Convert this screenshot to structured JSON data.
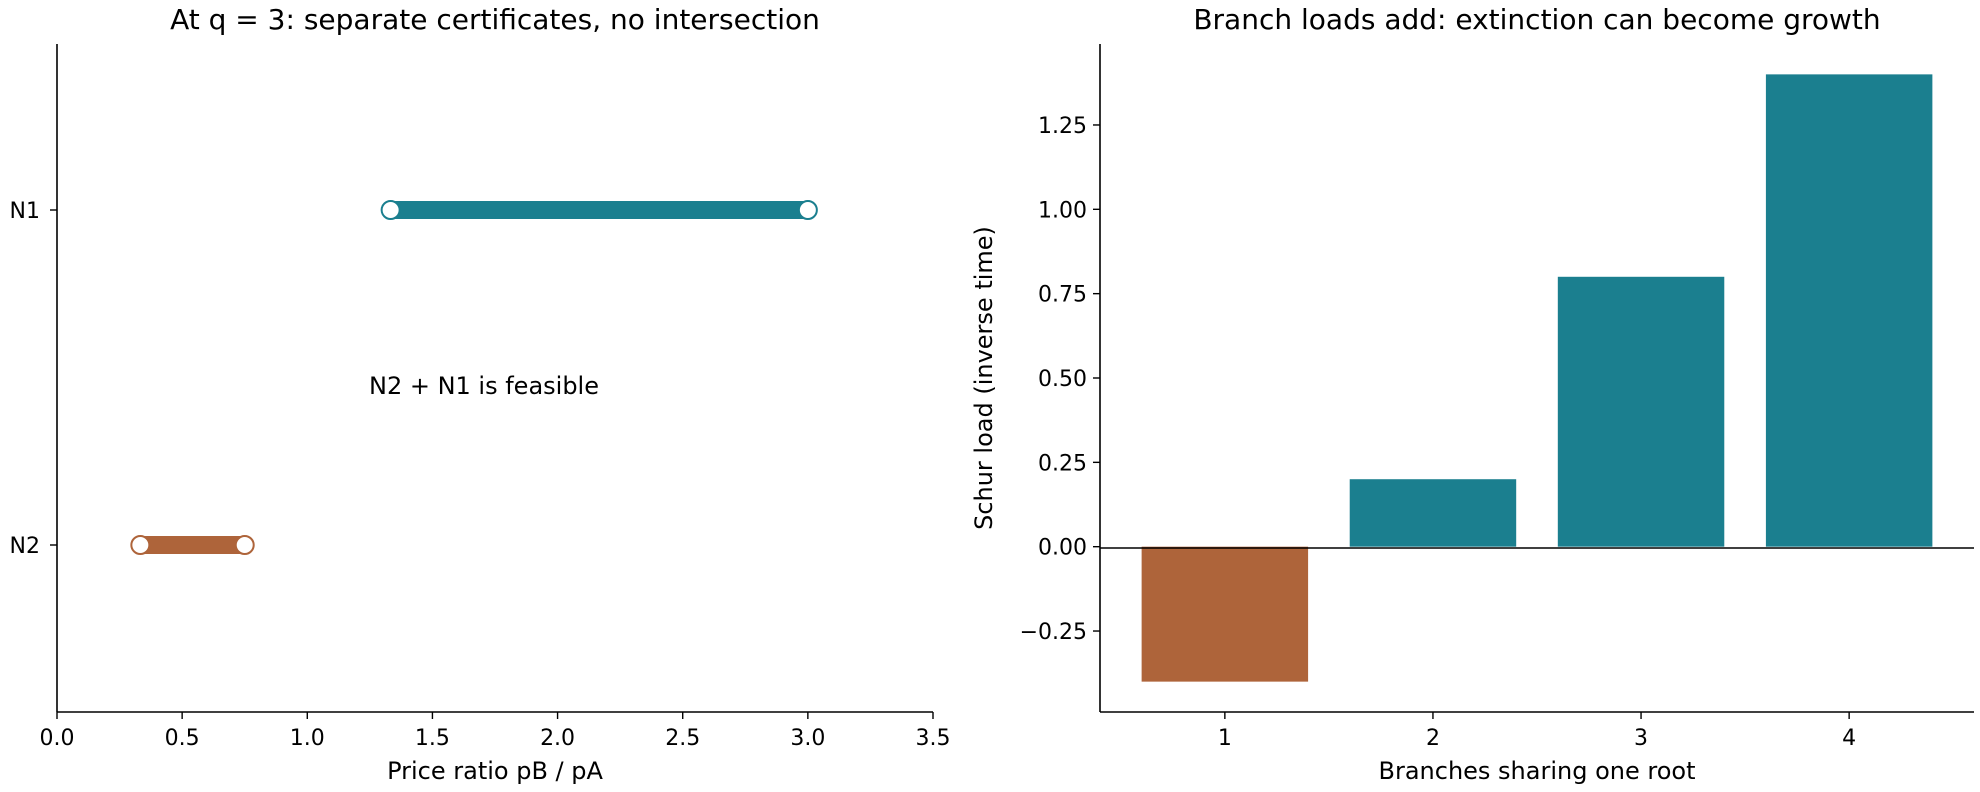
{
  "chart_data": [
    {
      "type": "interval",
      "title": "At q = 3: separate certificates, no intersection",
      "xlabel": "Price ratio pB / pA",
      "ylabel": "",
      "xlim": [
        0.0,
        3.5
      ],
      "xticks": [
        "0.0",
        "0.5",
        "1.0",
        "1.5",
        "2.0",
        "2.5",
        "3.0",
        "3.5"
      ],
      "categories": [
        "N1",
        "N2"
      ],
      "intervals": [
        {
          "category": "N1",
          "start": 1.333,
          "end": 3.0,
          "color": "#1b7f8f"
        },
        {
          "category": "N2",
          "start": 0.333,
          "end": 0.75,
          "color": "#ae643a"
        }
      ],
      "annotations": [
        {
          "text": "N2 + N1 is feasible",
          "x": 1.7,
          "y": 0.5
        }
      ],
      "grid": false
    },
    {
      "type": "bar",
      "title": "Branch loads add: extinction can become growth",
      "xlabel": "Branches sharing one root",
      "ylabel": "Schur load (inverse time)",
      "categories": [
        "1",
        "2",
        "3",
        "4"
      ],
      "values": [
        -0.4,
        0.2,
        0.8,
        1.4
      ],
      "colors": [
        "#ae643a",
        "#1b7f8f",
        "#1b7f8f",
        "#1b7f8f"
      ],
      "ylim": [
        -0.49,
        1.49
      ],
      "yticks": [
        "−0.25",
        "0.00",
        "0.25",
        "0.50",
        "0.75",
        "1.00",
        "1.25"
      ],
      "baseline": 0,
      "grid": false
    }
  ]
}
